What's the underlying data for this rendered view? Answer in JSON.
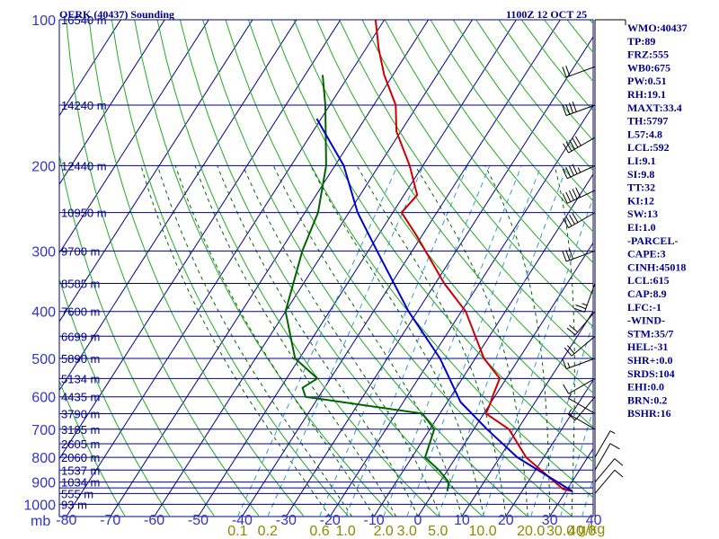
{
  "header": {
    "station": "OERK (40437) Sounding",
    "time": "1100Z 12 OCT 25"
  },
  "indices": [
    "WMO:40437",
    "TP:89",
    "FRZ:555",
    "WB0:675",
    "PW:0.51",
    "RH:19.1",
    "MAXT:33.4",
    "TH:5797",
    "L57:4.8",
    "LCL:592",
    "LI:9.1",
    "SI:9.8",
    "TT:32",
    "KI:12",
    "SW:13",
    "EI:1.0",
    "-PARCEL-",
    "CAPE:3",
    "CINH:45018",
    "LCL:615",
    "CAP:8.9",
    "LFC:-1",
    "-WIND-",
    "STM:35/7",
    "HEL:-31",
    "SHR+:0.0",
    "SRDS:104",
    "EHI:0.0",
    "BRN:0.2",
    "BSHR:16"
  ],
  "colors": {
    "grid": "#00008b",
    "dry_adiabat": "#22aa22",
    "moist_adiabat": "#006400",
    "mixing_ratio": "#3399cc",
    "temperature": "#cc0000",
    "dewpoint": "#006400",
    "parcel": "#0000cc",
    "axis_label": "#3333cc",
    "mixing_label": "#8b8b00"
  },
  "chart_data": {
    "type": "line",
    "subtype": "skew-t log-p",
    "pressure_unit_label": "mb",
    "pressure_levels": [
      100,
      150,
      200,
      250,
      300,
      350,
      400,
      450,
      500,
      550,
      600,
      650,
      700,
      750,
      800,
      850,
      900,
      925,
      950,
      1000
    ],
    "pressure_tick_labels": [
      100,
      200,
      300,
      400,
      500,
      600,
      700,
      800,
      900,
      1000
    ],
    "temperature_ticks": [
      -80,
      -70,
      -60,
      -50,
      -40,
      -30,
      -20,
      -10,
      0,
      10,
      20,
      30,
      40
    ],
    "mixing_ratio_labels": [
      "0.1",
      "0.2",
      "0.6",
      "1.0",
      "2.0",
      "3.0",
      "5.0",
      "10.0",
      "20.0",
      "30.0",
      "40.0"
    ],
    "mixing_ratio_unit": "g/kg",
    "height_labels": [
      {
        "p": 100,
        "label": "16540 m"
      },
      {
        "p": 150,
        "label": "14240 m"
      },
      {
        "p": 200,
        "label": "12440 m"
      },
      {
        "p": 250,
        "label": "10950 m"
      },
      {
        "p": 300,
        "label": "9700 m"
      },
      {
        "p": 350,
        "label": "8585 m"
      },
      {
        "p": 400,
        "label": "7600 m"
      },
      {
        "p": 450,
        "label": "6699 m"
      },
      {
        "p": 500,
        "label": "5890 m"
      },
      {
        "p": 550,
        "label": "5134 m"
      },
      {
        "p": 600,
        "label": "4435 m"
      },
      {
        "p": 650,
        "label": "3790 m"
      },
      {
        "p": 700,
        "label": "3185 m"
      },
      {
        "p": 750,
        "label": "2605 m"
      },
      {
        "p": 800,
        "label": "2060 m"
      },
      {
        "p": 850,
        "label": "1537 m"
      },
      {
        "p": 900,
        "label": "1034 m"
      },
      {
        "p": 950,
        "label": "555 m"
      },
      {
        "p": 1000,
        "label": "93 m"
      }
    ],
    "series": [
      {
        "name": "Temperature",
        "points": [
          {
            "p": 940,
            "t": 31.5
          },
          {
            "p": 930,
            "t": 29
          },
          {
            "p": 800,
            "t": 16
          },
          {
            "p": 700,
            "t": 8
          },
          {
            "p": 650,
            "t": 0.5
          },
          {
            "p": 620,
            "t": 0
          },
          {
            "p": 600,
            "t": -0.5
          },
          {
            "p": 550,
            "t": -1.5
          },
          {
            "p": 500,
            "t": -8
          },
          {
            "p": 400,
            "t": -19
          },
          {
            "p": 350,
            "t": -28
          },
          {
            "p": 300,
            "t": -37
          },
          {
            "p": 280,
            "t": -41
          },
          {
            "p": 250,
            "t": -48
          },
          {
            "p": 230,
            "t": -47
          },
          {
            "p": 200,
            "t": -53
          },
          {
            "p": 170,
            "t": -61
          },
          {
            "p": 150,
            "t": -65
          },
          {
            "p": 130,
            "t": -72
          },
          {
            "p": 115,
            "t": -77
          },
          {
            "p": 100,
            "t": -82
          }
        ]
      },
      {
        "name": "Dewpoint",
        "points": [
          {
            "p": 940,
            "t": 3
          },
          {
            "p": 900,
            "t": 2
          },
          {
            "p": 850,
            "t": -2
          },
          {
            "p": 800,
            "t": -7
          },
          {
            "p": 700,
            "t": -9
          },
          {
            "p": 650,
            "t": -14
          },
          {
            "p": 600,
            "t": -43
          },
          {
            "p": 575,
            "t": -45
          },
          {
            "p": 550,
            "t": -43
          },
          {
            "p": 500,
            "t": -51
          },
          {
            "p": 400,
            "t": -60
          },
          {
            "p": 300,
            "t": -65
          },
          {
            "p": 250,
            "t": -67
          },
          {
            "p": 200,
            "t": -72
          },
          {
            "p": 150,
            "t": -81
          },
          {
            "p": 130,
            "t": -86
          }
        ]
      },
      {
        "name": "Parcel",
        "points": [
          {
            "p": 940,
            "t": 31.5
          },
          {
            "p": 800,
            "t": 14
          },
          {
            "p": 700,
            "t": 3
          },
          {
            "p": 615,
            "t": -7
          },
          {
            "p": 500,
            "t": -18
          },
          {
            "p": 400,
            "t": -32
          },
          {
            "p": 300,
            "t": -48
          },
          {
            "p": 250,
            "t": -58
          },
          {
            "p": 200,
            "t": -68
          },
          {
            "p": 160,
            "t": -81
          }
        ]
      }
    ],
    "wind_barbs": [
      {
        "p": 100,
        "dir": 90,
        "spd": 5
      },
      {
        "p": 125,
        "dir": 250,
        "spd": 20
      },
      {
        "p": 150,
        "dir": 250,
        "spd": 40
      },
      {
        "p": 175,
        "dir": 240,
        "spd": 50
      },
      {
        "p": 200,
        "dir": 245,
        "spd": 45
      },
      {
        "p": 225,
        "dir": 245,
        "spd": 50
      },
      {
        "p": 250,
        "dir": 240,
        "spd": 40
      },
      {
        "p": 300,
        "dir": 250,
        "spd": 30
      },
      {
        "p": 350,
        "dir": 200,
        "spd": 25
      },
      {
        "p": 400,
        "dir": 220,
        "spd": 20
      },
      {
        "p": 450,
        "dir": 230,
        "spd": 20
      },
      {
        "p": 500,
        "dir": 250,
        "spd": 15
      },
      {
        "p": 550,
        "dir": 240,
        "spd": 10
      },
      {
        "p": 600,
        "dir": 220,
        "spd": 10
      },
      {
        "p": 650,
        "dir": 300,
        "spd": 5
      },
      {
        "p": 700,
        "dir": 300,
        "spd": 5
      },
      {
        "p": 800,
        "dir": 30,
        "spd": 5
      },
      {
        "p": 850,
        "dir": 30,
        "spd": 10
      },
      {
        "p": 900,
        "dir": 40,
        "spd": 10
      },
      {
        "p": 950,
        "dir": 40,
        "spd": 10
      }
    ]
  }
}
